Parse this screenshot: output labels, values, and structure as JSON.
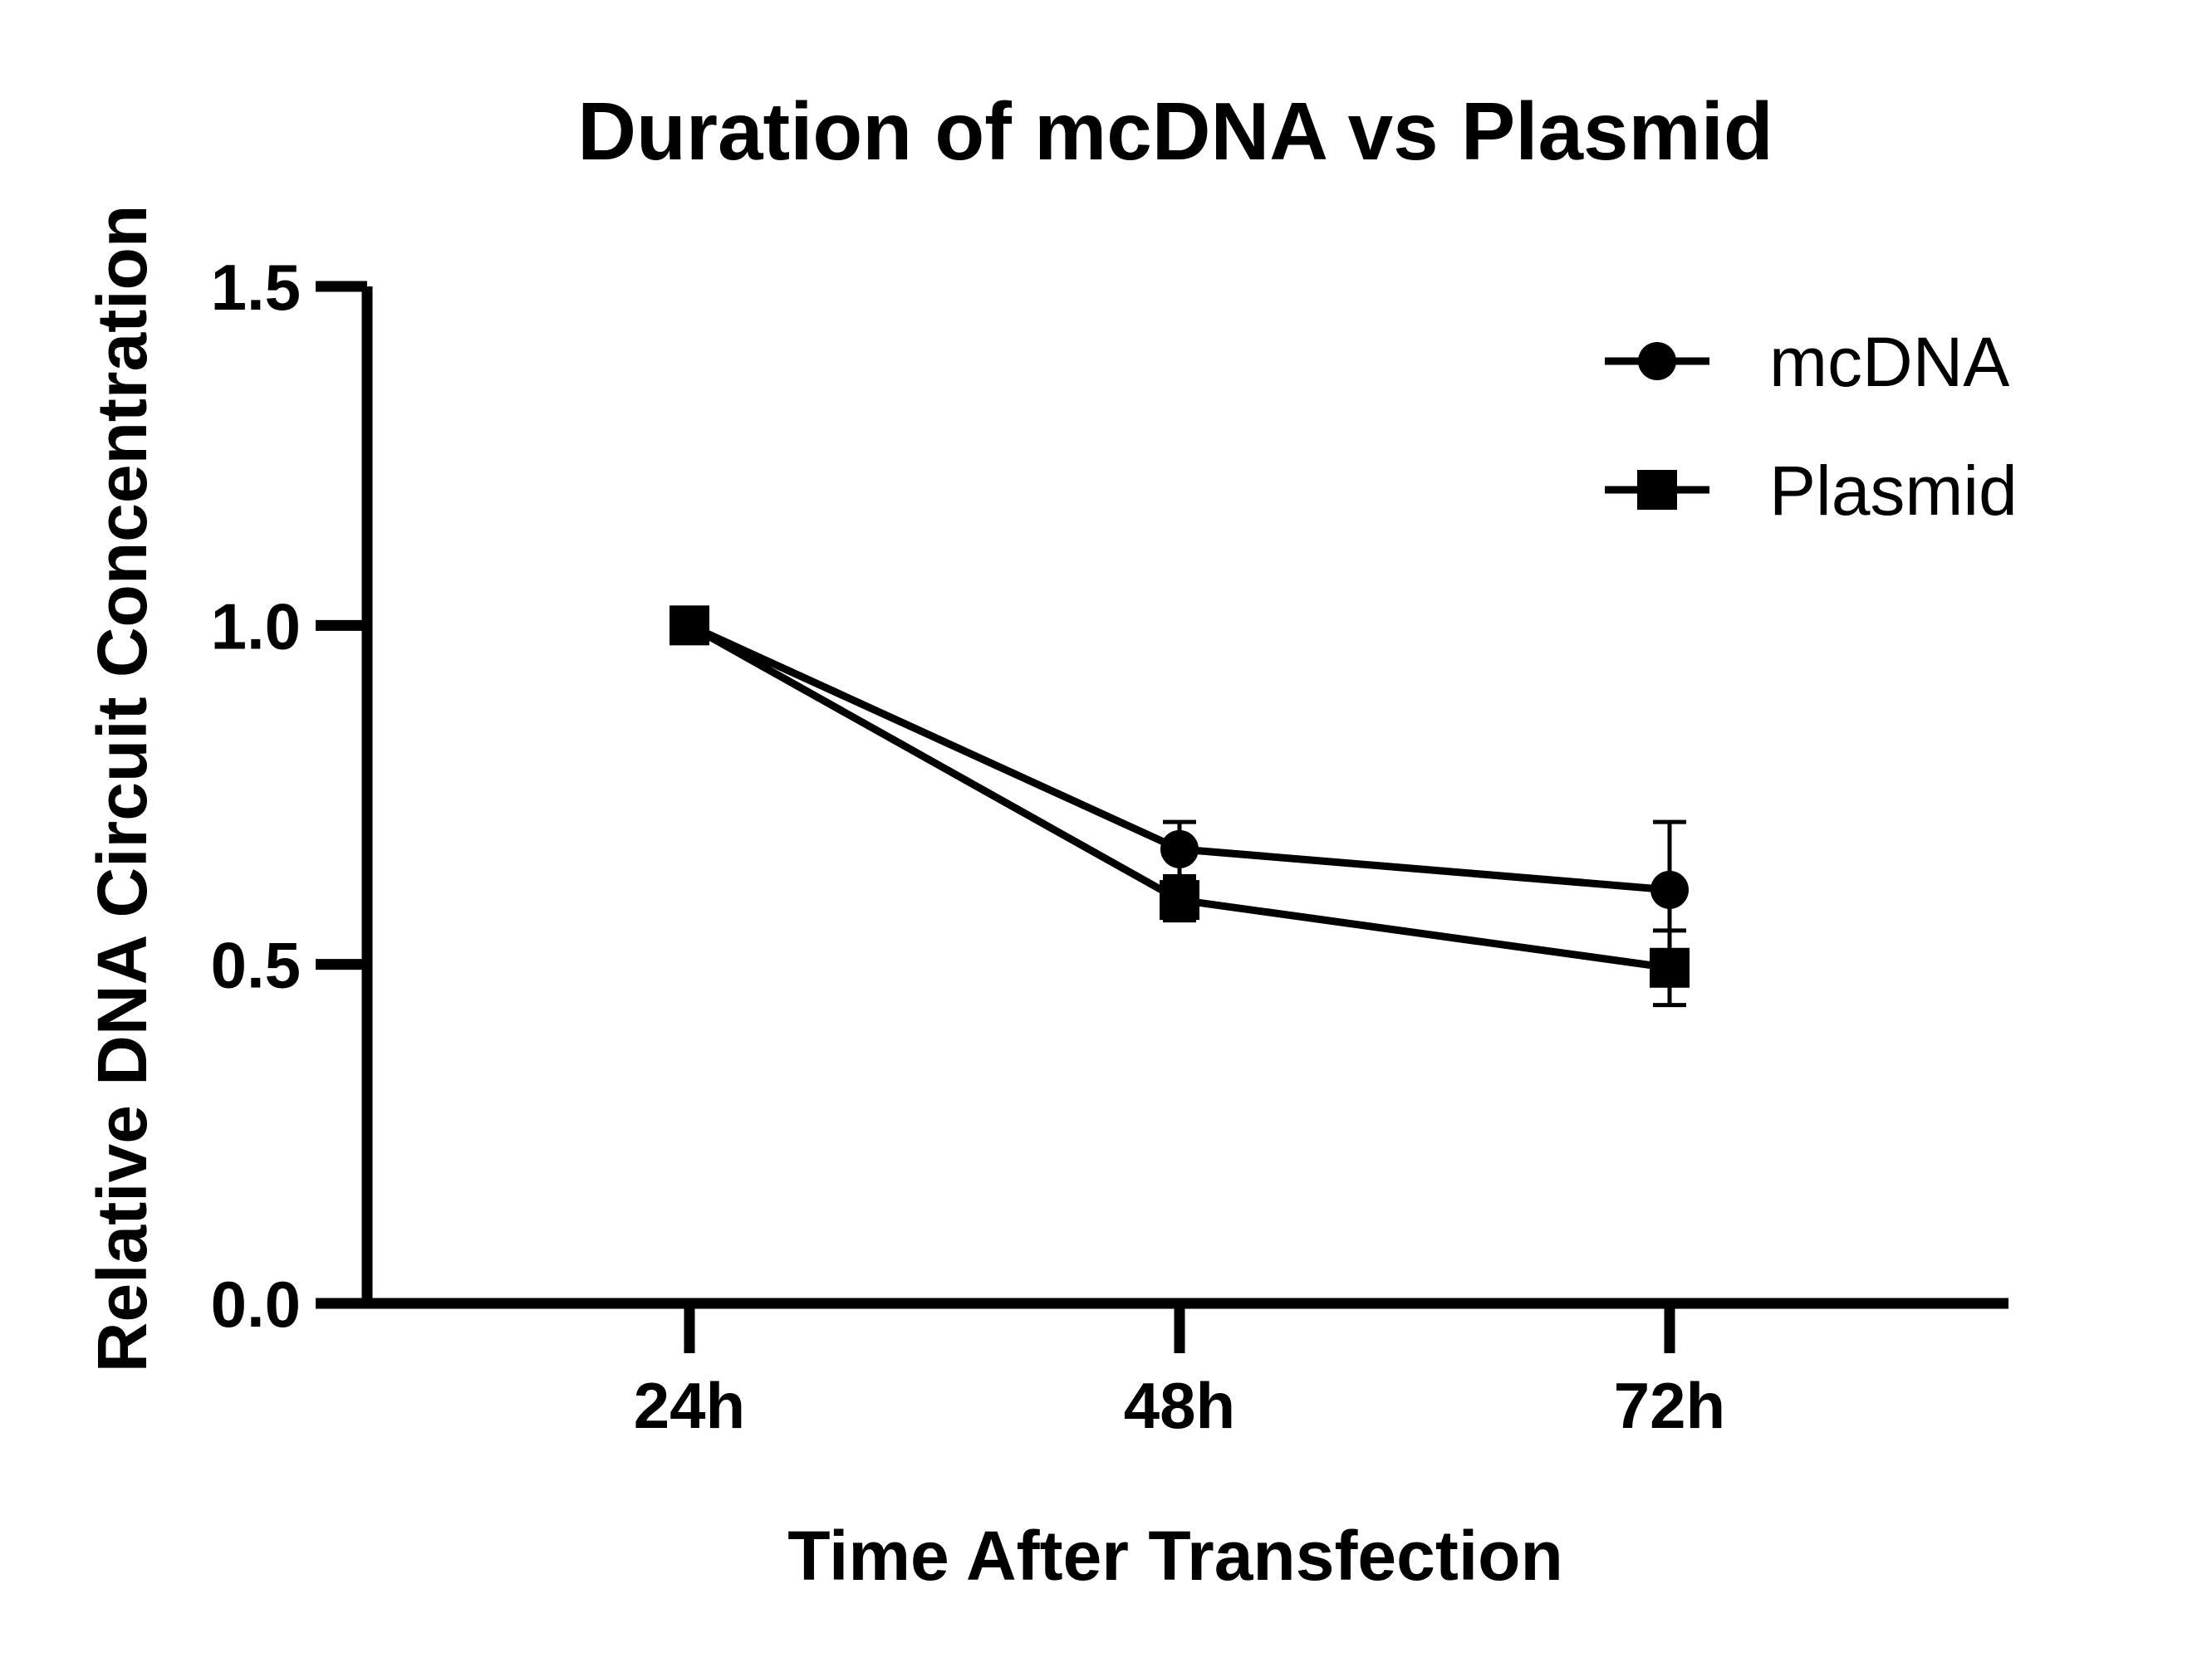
{
  "chart_data": {
    "type": "line",
    "title": "Duration of mcDNA vs Plasmid",
    "xlabel": "Time After Transfection",
    "ylabel": "Relative DNA Circuit Concentration",
    "categories": [
      "24h",
      "48h",
      "72h"
    ],
    "ylim": [
      0,
      1.5
    ],
    "yticks": [
      "0.0",
      "0.5",
      "1.0",
      "1.5"
    ],
    "grid": false,
    "legend_position": "top-right",
    "series": [
      {
        "name": "mcDNA",
        "marker": "circle",
        "color": "#000000",
        "values": [
          1.0,
          0.67,
          0.61
        ],
        "errors": [
          0.0,
          0.04,
          0.1
        ]
      },
      {
        "name": "Plasmid",
        "marker": "square",
        "color": "#000000",
        "values": [
          1.0,
          0.595,
          0.495
        ],
        "errors": [
          0.0,
          0.03,
          0.055
        ]
      }
    ]
  }
}
